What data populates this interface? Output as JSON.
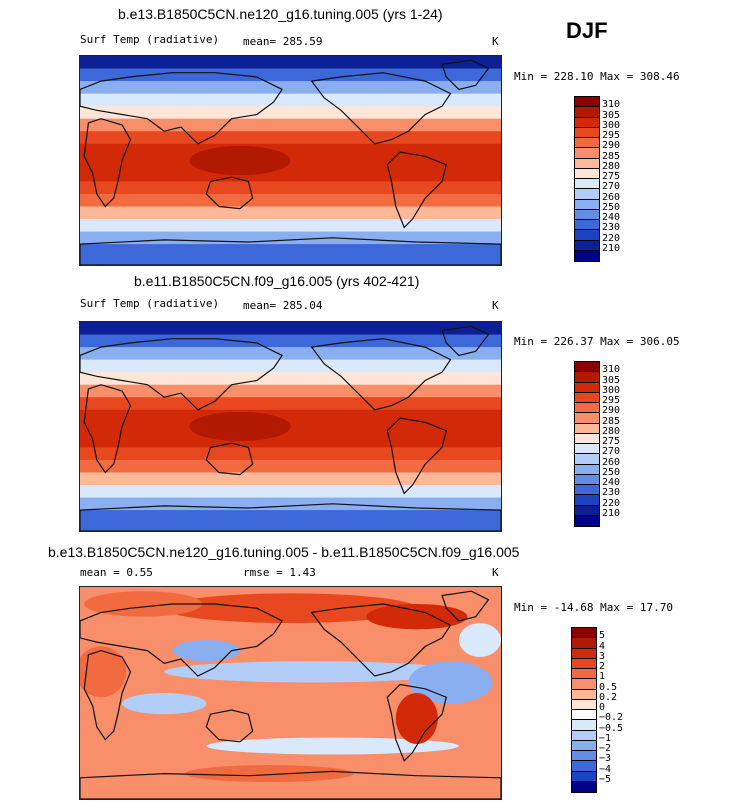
{
  "season": "DJF",
  "panels": [
    {
      "title": "b.e13.B1850C5CN.ne120_g16.tuning.005 (yrs 1-24)",
      "left_label": "Surf Temp (radiative)",
      "stat1": "mean=  285.59",
      "units": "K",
      "minmax": "Min = 228.10 Max = 308.46"
    },
    {
      "title": "b.e11.B1850C5CN.f09_g16.005 (yrs 402-421)",
      "left_label": "Surf Temp (radiative)",
      "stat1": "mean=  285.04",
      "units": "K",
      "minmax": "Min = 226.37 Max = 306.05"
    },
    {
      "title": "b.e13.B1850C5CN.ne120_g16.tuning.005 - b.e11.B1850C5CN.f09_g16.005",
      "stat1": "mean =    0.55",
      "stat2": "rmse =    1.43",
      "units": "K",
      "minmax": "Min = -14.68 Max =  17.70"
    }
  ],
  "chart_data": [
    {
      "type": "heatmap",
      "title": "b.e13.B1850C5CN.ne120_g16.tuning.005 (yrs 1-24)",
      "variable": "Surf Temp (radiative)",
      "units": "K",
      "mean": 285.59,
      "min": 228.1,
      "max": 308.46,
      "levels": [
        "310",
        "305",
        "300",
        "295",
        "290",
        "285",
        "280",
        "275",
        "270",
        "260",
        "250",
        "240",
        "230",
        "220",
        "210"
      ],
      "colors": [
        "#8b0000",
        "#b31800",
        "#d22a08",
        "#e8481f",
        "#f26a3f",
        "#f88e6a",
        "#fcb898",
        "#fde6d8",
        "#d9e8fb",
        "#b2cdf7",
        "#8aaff0",
        "#628ce6",
        "#3c68da",
        "#1c44c2",
        "#0d1f95",
        "#000088"
      ]
    },
    {
      "type": "heatmap",
      "title": "b.e11.B1850C5CN.f09_g16.005 (yrs 402-421)",
      "variable": "Surf Temp (radiative)",
      "units": "K",
      "mean": 285.04,
      "min": 226.37,
      "max": 306.05,
      "levels": [
        "310",
        "305",
        "300",
        "295",
        "290",
        "285",
        "280",
        "275",
        "270",
        "260",
        "250",
        "240",
        "230",
        "220",
        "210"
      ],
      "colors": [
        "#8b0000",
        "#b31800",
        "#d22a08",
        "#e8481f",
        "#f26a3f",
        "#f88e6a",
        "#fcb898",
        "#fde6d8",
        "#d9e8fb",
        "#b2cdf7",
        "#8aaff0",
        "#628ce6",
        "#3c68da",
        "#1c44c2",
        "#0d1f95",
        "#000088"
      ]
    },
    {
      "type": "heatmap",
      "title": "b.e13.B1850C5CN.ne120_g16.tuning.005 - b.e11.B1850C5CN.f09_g16.005",
      "units": "K",
      "mean": 0.55,
      "rmse": 1.43,
      "min": -14.68,
      "max": 17.7,
      "levels": [
        "5",
        "4",
        "3",
        "2",
        "1",
        "0.5",
        "0.2",
        "0",
        "−0.2",
        "−0.5",
        "−1",
        "−2",
        "−3",
        "−4",
        "−5"
      ],
      "colors": [
        "#8b0000",
        "#b31800",
        "#d22a08",
        "#e8481f",
        "#f26a3f",
        "#f88e6a",
        "#fcb898",
        "#fde6d8",
        "#ffffff",
        "#d9e8fb",
        "#b2cdf7",
        "#8aaff0",
        "#628ce6",
        "#3c68da",
        "#1c44c2",
        "#000088"
      ]
    }
  ]
}
